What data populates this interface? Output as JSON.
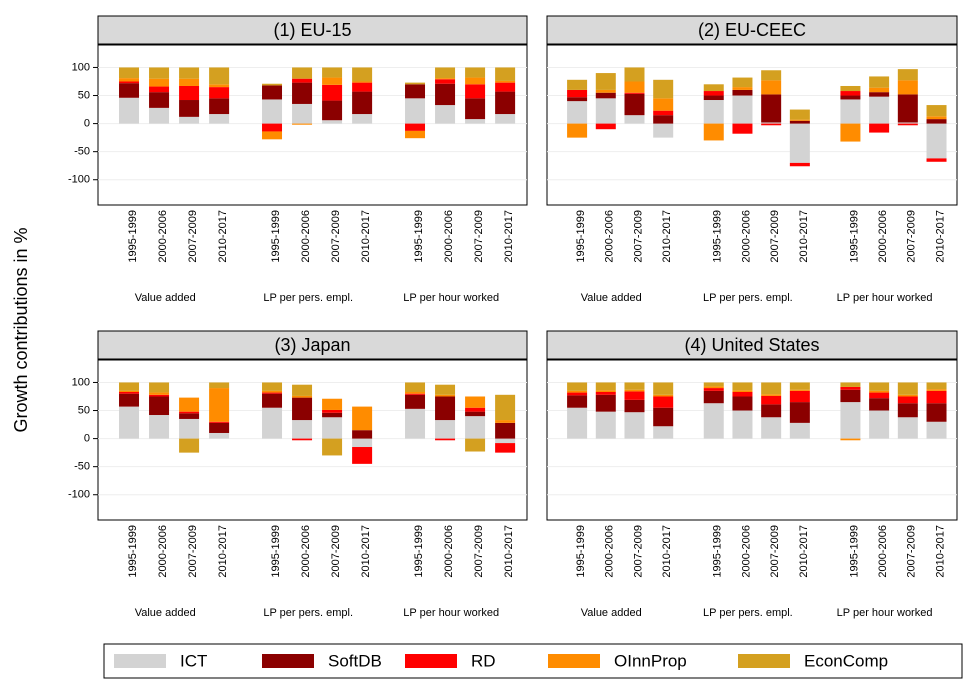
{
  "chart_data": {
    "type": "bar",
    "stacked": true,
    "y_label": "Growth contributions in %",
    "ylim": [
      -145,
      140
    ],
    "yticks": [
      -100,
      -50,
      0,
      50,
      100
    ],
    "grid": true,
    "categories": [
      "1995-1999",
      "2000-2006",
      "2007-2009",
      "2010-2017",
      "1995-1999",
      "2000-2006",
      "2007-2009",
      "2010-2017",
      "1995-1999",
      "2000-2006",
      "2007-2009",
      "2010-2017"
    ],
    "groups": [
      "Value added",
      "LP per pers. empl.",
      "LP per hour worked"
    ],
    "series": [
      {
        "name": "ICT",
        "color": "#d3d3d3"
      },
      {
        "name": "SoftDB",
        "color": "#8b0000"
      },
      {
        "name": "RD",
        "color": "#ff0000"
      },
      {
        "name": "OInnProp",
        "color": "#ff8c00"
      },
      {
        "name": "EconComp",
        "color": "#d4a020"
      }
    ],
    "panels": [
      {
        "title": "(1) EU-15",
        "values": [
          [
            46,
            28,
            12,
            17,
            43,
            35,
            6,
            17,
            45,
            33,
            8,
            17
          ],
          [
            26,
            28,
            30,
            28,
            25,
            38,
            35,
            40,
            25,
            38,
            37,
            40
          ],
          [
            3,
            10,
            25,
            20,
            -14,
            7,
            28,
            16,
            -13,
            8,
            25,
            16
          ],
          [
            6,
            14,
            13,
            5,
            -14,
            -2,
            13,
            2,
            -13,
            2,
            12,
            3
          ],
          [
            19,
            20,
            20,
            30,
            3,
            20,
            18,
            25,
            3,
            19,
            18,
            24
          ]
        ]
      },
      {
        "title": "(2) EU-CEEC",
        "values": [
          [
            40,
            45,
            15,
            -25,
            42,
            50,
            2,
            -70,
            43,
            48,
            2,
            -62
          ],
          [
            7,
            10,
            38,
            15,
            8,
            10,
            50,
            5,
            7,
            8,
            50,
            8
          ],
          [
            13,
            -10,
            2,
            8,
            8,
            -18,
            -3,
            -6,
            8,
            -16,
            -3,
            -6
          ],
          [
            -25,
            5,
            20,
            22,
            -30,
            5,
            25,
            2,
            -32,
            8,
            25,
            5
          ],
          [
            18,
            30,
            25,
            33,
            12,
            17,
            18,
            18,
            9,
            20,
            20,
            20
          ]
        ]
      },
      {
        "title": "(3) Japan",
        "values": [
          [
            57,
            42,
            35,
            10,
            55,
            33,
            38,
            -15,
            53,
            33,
            40,
            -8
          ],
          [
            23,
            33,
            10,
            18,
            25,
            40,
            8,
            15,
            25,
            42,
            8,
            28
          ],
          [
            3,
            3,
            3,
            2,
            2,
            -3,
            5,
            -30,
            2,
            -3,
            7,
            -17
          ],
          [
            2,
            4,
            25,
            60,
            3,
            3,
            20,
            42,
            3,
            3,
            20,
            5
          ],
          [
            15,
            18,
            -25,
            10,
            15,
            20,
            -30,
            0,
            17,
            18,
            -23,
            45
          ]
        ]
      },
      {
        "title": "(4) United States",
        "values": [
          [
            55,
            48,
            47,
            22,
            63,
            50,
            38,
            28,
            65,
            50,
            38,
            30
          ],
          [
            22,
            30,
            22,
            33,
            22,
            25,
            23,
            37,
            22,
            22,
            25,
            33
          ],
          [
            5,
            5,
            15,
            20,
            5,
            8,
            15,
            20,
            5,
            10,
            12,
            22
          ],
          [
            3,
            3,
            3,
            3,
            3,
            3,
            3,
            2,
            -3,
            3,
            3,
            3
          ],
          [
            15,
            14,
            13,
            22,
            7,
            14,
            21,
            13,
            8,
            15,
            22,
            12
          ]
        ]
      }
    ]
  }
}
